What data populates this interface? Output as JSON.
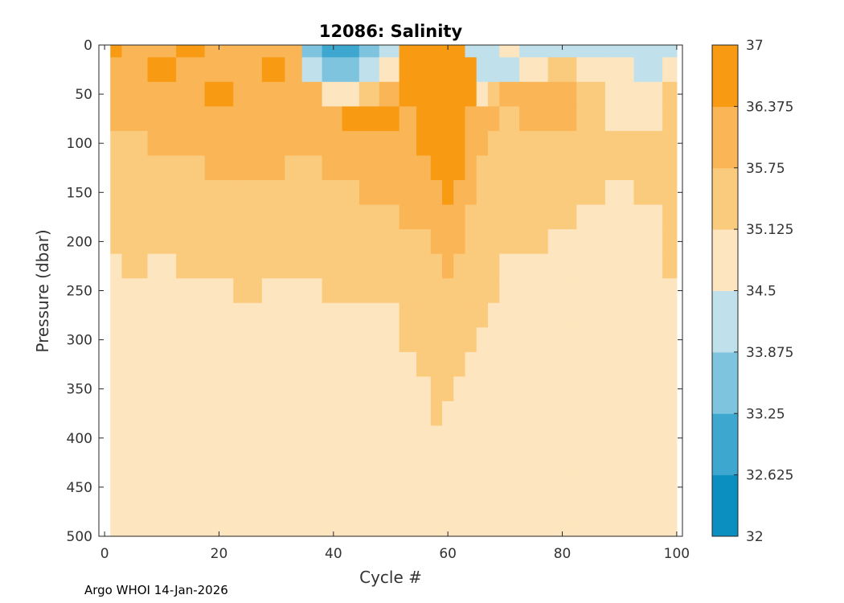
{
  "footer": {
    "text": "Argo WHOI 14-Jan-2026"
  },
  "chart_data": {
    "type": "heatmap",
    "title": "12086:  Salinity",
    "xlabel": "Cycle #",
    "ylabel": "Pressure (dbar)",
    "xlim": [
      -1,
      101
    ],
    "ylim": [
      0,
      500
    ],
    "y_reversed": true,
    "x_ticks": [
      0,
      20,
      40,
      60,
      80,
      100
    ],
    "y_ticks": [
      0,
      50,
      100,
      150,
      200,
      250,
      300,
      350,
      400,
      450,
      500
    ],
    "data_x_range": [
      1,
      100
    ],
    "colorbar": {
      "min": 32,
      "max": 37,
      "ticks": [
        "32",
        "32.625",
        "33.25",
        "33.875",
        "34.5",
        "35.125",
        "35.75",
        "36.375",
        "37"
      ],
      "colors": [
        "#0a8fc0",
        "#3ea7d0",
        "#7fc4df",
        "#c0e1ec",
        "#fde5bf",
        "#fbcb7d",
        "#f9b556",
        "#f89b12"
      ]
    },
    "pressure_levels": [
      0,
      25,
      50,
      75,
      100,
      125,
      150,
      175,
      200,
      225,
      250,
      275,
      300,
      325,
      350,
      375,
      400,
      425,
      450,
      475,
      500
    ],
    "cycles": [
      1,
      5,
      10,
      15,
      20,
      25,
      30,
      33,
      36,
      40,
      43,
      46,
      50,
      53,
      56,
      58,
      60,
      62,
      64,
      66,
      68,
      70,
      75,
      80,
      85,
      90,
      95,
      100
    ],
    "salinity": [
      [
        36.5,
        36.0,
        36.0,
        36.0,
        35.4,
        35.4,
        35.4,
        35.4,
        35.4,
        34.8,
        34.8,
        34.8,
        34.8,
        34.8,
        34.8,
        34.8,
        34.8,
        34.8,
        34.8,
        34.8,
        34.8
      ],
      [
        36.0,
        36.0,
        36.0,
        36.0,
        35.4,
        35.4,
        35.4,
        35.4,
        35.4,
        35.4,
        34.8,
        34.8,
        34.8,
        34.8,
        34.8,
        34.8,
        34.8,
        34.8,
        34.8,
        34.8,
        34.8
      ],
      [
        36.0,
        36.5,
        36.0,
        36.0,
        36.0,
        35.4,
        35.4,
        35.4,
        35.4,
        34.8,
        34.8,
        34.8,
        34.8,
        34.8,
        34.8,
        34.8,
        34.8,
        34.8,
        34.8,
        34.8,
        34.8
      ],
      [
        36.5,
        36.0,
        36.0,
        36.0,
        36.0,
        35.4,
        35.4,
        35.4,
        35.4,
        35.4,
        34.8,
        34.8,
        34.8,
        34.8,
        34.8,
        34.8,
        34.8,
        34.8,
        34.8,
        34.8,
        34.8
      ],
      [
        36.0,
        36.0,
        36.5,
        36.0,
        36.0,
        36.0,
        35.4,
        35.4,
        35.4,
        35.4,
        34.8,
        34.8,
        34.8,
        34.8,
        34.8,
        34.8,
        34.8,
        34.8,
        34.8,
        34.8,
        34.8
      ],
      [
        36.0,
        36.0,
        36.0,
        36.0,
        36.0,
        36.0,
        35.4,
        35.4,
        35.4,
        35.4,
        35.4,
        34.8,
        34.8,
        34.8,
        34.8,
        34.8,
        34.8,
        34.8,
        34.8,
        34.8,
        34.8
      ],
      [
        36.0,
        36.5,
        36.0,
        36.0,
        36.0,
        36.0,
        35.4,
        35.4,
        35.4,
        35.4,
        34.8,
        34.8,
        34.8,
        34.8,
        34.8,
        34.8,
        34.8,
        34.8,
        34.8,
        34.8,
        34.8
      ],
      [
        36.0,
        36.0,
        36.0,
        36.0,
        36.0,
        35.4,
        35.4,
        35.4,
        35.4,
        35.4,
        34.8,
        34.8,
        34.8,
        34.8,
        34.8,
        34.8,
        34.8,
        34.8,
        34.8,
        34.8,
        34.8
      ],
      [
        33.5,
        33.9,
        36.0,
        36.0,
        36.0,
        35.4,
        35.4,
        35.4,
        35.4,
        35.4,
        34.8,
        34.8,
        34.8,
        34.8,
        34.8,
        34.8,
        34.8,
        34.8,
        34.8,
        34.8,
        34.8
      ],
      [
        33.0,
        33.5,
        34.8,
        36.0,
        36.0,
        36.0,
        35.4,
        35.4,
        35.4,
        35.4,
        35.4,
        34.8,
        34.8,
        34.8,
        34.8,
        34.8,
        34.8,
        34.8,
        34.8,
        34.8,
        34.8
      ],
      [
        33.0,
        33.3,
        34.5,
        36.5,
        36.0,
        36.0,
        35.4,
        35.4,
        35.4,
        35.4,
        35.4,
        34.8,
        34.8,
        34.8,
        34.8,
        34.8,
        34.8,
        34.8,
        34.8,
        34.8,
        34.8
      ],
      [
        33.5,
        34.0,
        35.4,
        36.5,
        36.0,
        36.0,
        36.0,
        35.4,
        35.4,
        35.4,
        35.4,
        34.8,
        34.8,
        34.8,
        34.8,
        34.8,
        34.8,
        34.8,
        34.8,
        34.8,
        34.8
      ],
      [
        34.2,
        34.5,
        36.0,
        36.5,
        36.0,
        36.0,
        36.0,
        35.4,
        35.4,
        35.4,
        35.4,
        34.8,
        34.8,
        34.8,
        34.8,
        34.8,
        34.8,
        34.8,
        34.8,
        34.8,
        34.8
      ],
      [
        36.6,
        36.6,
        36.6,
        36.0,
        36.0,
        36.0,
        36.0,
        36.0,
        35.4,
        35.4,
        35.4,
        35.4,
        35.4,
        34.8,
        34.8,
        34.8,
        34.8,
        34.8,
        34.8,
        34.8,
        34.8
      ],
      [
        36.8,
        36.8,
        36.8,
        36.6,
        36.6,
        36.0,
        36.0,
        36.0,
        35.4,
        35.4,
        35.4,
        35.4,
        35.4,
        35.4,
        34.8,
        34.8,
        34.8,
        34.8,
        34.8,
        34.8,
        34.8
      ],
      [
        36.8,
        36.8,
        36.8,
        36.8,
        36.6,
        36.6,
        36.0,
        36.0,
        36.0,
        35.4,
        35.4,
        35.4,
        35.4,
        35.4,
        35.4,
        35.4,
        34.8,
        34.8,
        34.8,
        34.8,
        34.8
      ],
      [
        36.8,
        36.8,
        36.8,
        36.8,
        36.8,
        36.6,
        36.6,
        36.0,
        36.0,
        36.0,
        35.4,
        35.4,
        35.4,
        35.4,
        35.4,
        34.8,
        34.8,
        34.8,
        34.8,
        34.8,
        34.8
      ],
      [
        36.8,
        36.8,
        36.8,
        36.8,
        36.6,
        36.6,
        36.0,
        36.0,
        36.0,
        35.4,
        35.4,
        35.4,
        35.4,
        35.4,
        34.8,
        34.8,
        34.8,
        34.8,
        34.8,
        34.8,
        34.8
      ],
      [
        34.2,
        36.6,
        36.6,
        36.0,
        36.0,
        36.0,
        36.0,
        35.4,
        35.4,
        35.4,
        35.4,
        35.4,
        35.4,
        34.8,
        34.8,
        34.8,
        34.8,
        34.8,
        34.8,
        34.8,
        34.8
      ],
      [
        34.2,
        34.2,
        34.8,
        36.0,
        36.0,
        35.4,
        35.4,
        35.4,
        35.4,
        35.4,
        35.4,
        35.4,
        34.8,
        34.8,
        34.8,
        34.8,
        34.8,
        34.8,
        34.8,
        34.8,
        34.8
      ],
      [
        34.2,
        34.2,
        35.4,
        36.0,
        35.4,
        35.4,
        35.4,
        35.4,
        35.4,
        35.4,
        35.4,
        34.8,
        34.8,
        34.8,
        34.8,
        34.8,
        34.8,
        34.8,
        34.8,
        34.8,
        34.8
      ],
      [
        34.8,
        34.2,
        36.0,
        35.4,
        35.4,
        35.4,
        35.4,
        35.4,
        35.4,
        34.8,
        34.8,
        34.8,
        34.8,
        34.8,
        34.8,
        34.8,
        34.8,
        34.8,
        34.8,
        34.8,
        34.8
      ],
      [
        34.2,
        34.8,
        36.0,
        36.0,
        35.4,
        35.4,
        35.4,
        35.4,
        35.4,
        34.8,
        34.8,
        34.8,
        34.8,
        34.8,
        34.8,
        34.8,
        34.8,
        34.8,
        34.8,
        34.8,
        34.8
      ],
      [
        34.2,
        35.4,
        36.0,
        36.0,
        35.4,
        35.4,
        35.4,
        35.4,
        34.8,
        34.8,
        34.8,
        34.8,
        34.8,
        34.8,
        34.8,
        34.8,
        34.8,
        34.8,
        34.8,
        34.8,
        34.8
      ],
      [
        34.2,
        34.8,
        35.4,
        35.4,
        35.4,
        35.4,
        35.4,
        34.8,
        34.8,
        34.8,
        34.8,
        34.8,
        34.8,
        34.8,
        34.8,
        34.8,
        34.8,
        34.8,
        34.8,
        34.8,
        34.8
      ],
      [
        34.2,
        34.8,
        34.8,
        34.8,
        35.4,
        35.4,
        34.8,
        34.8,
        34.8,
        34.8,
        34.8,
        34.8,
        34.8,
        34.8,
        34.8,
        34.8,
        34.8,
        34.8,
        34.8,
        34.8,
        34.8
      ],
      [
        33.9,
        34.2,
        34.8,
        34.8,
        35.4,
        35.4,
        35.4,
        34.8,
        34.8,
        34.8,
        34.8,
        34.8,
        34.8,
        34.8,
        34.8,
        34.8,
        34.8,
        34.8,
        34.8,
        34.8,
        34.8
      ],
      [
        34.2,
        34.8,
        35.4,
        35.4,
        35.4,
        35.4,
        35.4,
        35.4,
        35.4,
        35.4,
        34.8,
        34.8,
        34.8,
        34.8,
        34.8,
        34.8,
        34.8,
        34.8,
        34.8,
        34.8,
        34.8
      ]
    ]
  }
}
